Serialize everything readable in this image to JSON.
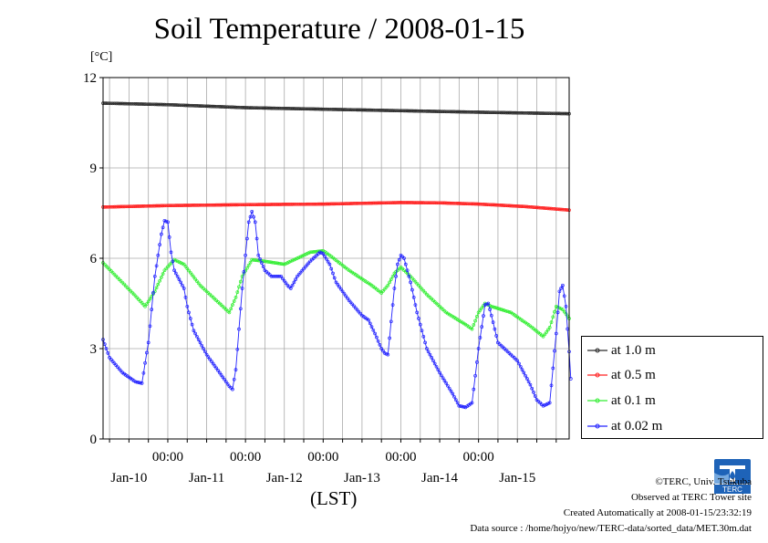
{
  "title": "Soil Temperature / 2008-01-15",
  "unit_label": "[°C]",
  "x_axis_label": "(LST)",
  "colors": {
    "at_1_0m": "#2b2b2b",
    "at_0_5m": "#ff2020",
    "at_0_1m": "#33ee33",
    "at_0_02m": "#2222ff"
  },
  "credits": {
    "copyright": "©TERC, Univ. Tsukuba",
    "observed": "Observed at TERC Tower site",
    "created": "Created Automatically at 2008-01-15/23:32:19",
    "source": "Data source : /home/hojyo/new/TERC-data/sorted_data/MET.30m.dat"
  },
  "logo_text": "TERC",
  "chart_data": {
    "type": "line",
    "ylim": [
      0,
      12
    ],
    "y_ticks": [
      "0",
      "3",
      "6",
      "9",
      "12"
    ],
    "x_range_hours": [
      -20,
      124
    ],
    "x_tick_labels": [
      "00:00",
      "00:00",
      "00:00",
      "00:00",
      "00:00"
    ],
    "x_date_labels": [
      "Jan-10",
      "Jan-11",
      "Jan-12",
      "Jan-13",
      "Jan-14",
      "Jan-15"
    ],
    "grid": true,
    "legend_position": "right",
    "series": [
      {
        "name": "at 1.0 m",
        "key": "at_1_0m",
        "points": [
          [
            -20,
            11.15
          ],
          [
            0,
            11.1
          ],
          [
            24,
            11.0
          ],
          [
            48,
            10.95
          ],
          [
            72,
            10.9
          ],
          [
            96,
            10.85
          ],
          [
            124,
            10.8
          ]
        ]
      },
      {
        "name": "at 0.5 m",
        "key": "at_0_5m",
        "points": [
          [
            -20,
            7.7
          ],
          [
            0,
            7.75
          ],
          [
            24,
            7.78
          ],
          [
            48,
            7.8
          ],
          [
            72,
            7.85
          ],
          [
            84,
            7.84
          ],
          [
            96,
            7.8
          ],
          [
            110,
            7.72
          ],
          [
            124,
            7.6
          ]
        ]
      },
      {
        "name": "at 0.1 m",
        "key": "at_0_1m",
        "points": [
          [
            -20,
            5.85
          ],
          [
            -10,
            4.75
          ],
          [
            -7,
            4.4
          ],
          [
            -4,
            4.9
          ],
          [
            -1,
            5.6
          ],
          [
            2,
            5.95
          ],
          [
            5,
            5.8
          ],
          [
            10,
            5.1
          ],
          [
            15,
            4.6
          ],
          [
            19,
            4.2
          ],
          [
            21,
            4.7
          ],
          [
            23,
            5.4
          ],
          [
            26,
            5.95
          ],
          [
            30,
            5.9
          ],
          [
            36,
            5.8
          ],
          [
            40,
            6.0
          ],
          [
            44,
            6.2
          ],
          [
            48,
            6.25
          ],
          [
            50,
            6.1
          ],
          [
            56,
            5.6
          ],
          [
            63,
            5.1
          ],
          [
            66,
            4.85
          ],
          [
            68,
            5.1
          ],
          [
            70,
            5.5
          ],
          [
            72,
            5.7
          ],
          [
            75,
            5.4
          ],
          [
            80,
            4.8
          ],
          [
            86,
            4.2
          ],
          [
            92,
            3.8
          ],
          [
            94,
            3.65
          ],
          [
            96,
            4.2
          ],
          [
            98,
            4.5
          ],
          [
            100,
            4.4
          ],
          [
            106,
            4.2
          ],
          [
            112,
            3.75
          ],
          [
            116,
            3.4
          ],
          [
            118,
            3.7
          ],
          [
            120,
            4.4
          ],
          [
            122,
            4.3
          ],
          [
            124,
            4.0
          ]
        ]
      },
      {
        "name": "at 0.02 m",
        "key": "at_0_02m",
        "points": [
          [
            -20,
            3.3
          ],
          [
            -18,
            2.7
          ],
          [
            -14,
            2.2
          ],
          [
            -10,
            1.9
          ],
          [
            -8,
            1.85
          ],
          [
            -6,
            3.2
          ],
          [
            -4,
            5.4
          ],
          [
            -2,
            6.8
          ],
          [
            -1,
            7.25
          ],
          [
            0,
            7.2
          ],
          [
            1,
            6.2
          ],
          [
            2,
            5.6
          ],
          [
            3,
            5.4
          ],
          [
            5,
            5.0
          ],
          [
            6,
            4.4
          ],
          [
            8,
            3.6
          ],
          [
            12,
            2.8
          ],
          [
            16,
            2.2
          ],
          [
            19,
            1.75
          ],
          [
            20,
            1.65
          ],
          [
            21,
            2.3
          ],
          [
            23,
            5.0
          ],
          [
            25,
            7.2
          ],
          [
            26,
            7.55
          ],
          [
            27,
            7.2
          ],
          [
            28,
            6.1
          ],
          [
            30,
            5.6
          ],
          [
            32,
            5.4
          ],
          [
            35,
            5.4
          ],
          [
            37,
            5.1
          ],
          [
            38,
            5.0
          ],
          [
            40,
            5.4
          ],
          [
            44,
            5.9
          ],
          [
            47,
            6.2
          ],
          [
            48,
            6.15
          ],
          [
            50,
            5.8
          ],
          [
            52,
            5.2
          ],
          [
            56,
            4.6
          ],
          [
            60,
            4.1
          ],
          [
            62,
            3.95
          ],
          [
            64,
            3.5
          ],
          [
            66,
            3.0
          ],
          [
            67,
            2.85
          ],
          [
            68,
            2.8
          ],
          [
            70,
            5.0
          ],
          [
            71,
            5.8
          ],
          [
            72,
            6.1
          ],
          [
            73,
            6.0
          ],
          [
            75,
            5.2
          ],
          [
            77,
            4.2
          ],
          [
            80,
            3.0
          ],
          [
            84,
            2.2
          ],
          [
            88,
            1.5
          ],
          [
            90,
            1.1
          ],
          [
            92,
            1.05
          ],
          [
            94,
            1.2
          ],
          [
            96,
            3.0
          ],
          [
            98,
            4.45
          ],
          [
            99,
            4.5
          ],
          [
            100,
            4.1
          ],
          [
            102,
            3.2
          ],
          [
            106,
            2.8
          ],
          [
            108,
            2.6
          ],
          [
            112,
            1.8
          ],
          [
            114,
            1.3
          ],
          [
            116,
            1.1
          ],
          [
            118,
            1.2
          ],
          [
            120,
            3.5
          ],
          [
            121,
            4.9
          ],
          [
            122,
            5.1
          ],
          [
            123,
            4.4
          ],
          [
            124,
            2.9
          ],
          [
            124.5,
            2.0
          ],
          [
            125,
            1.9
          ]
        ]
      }
    ]
  }
}
